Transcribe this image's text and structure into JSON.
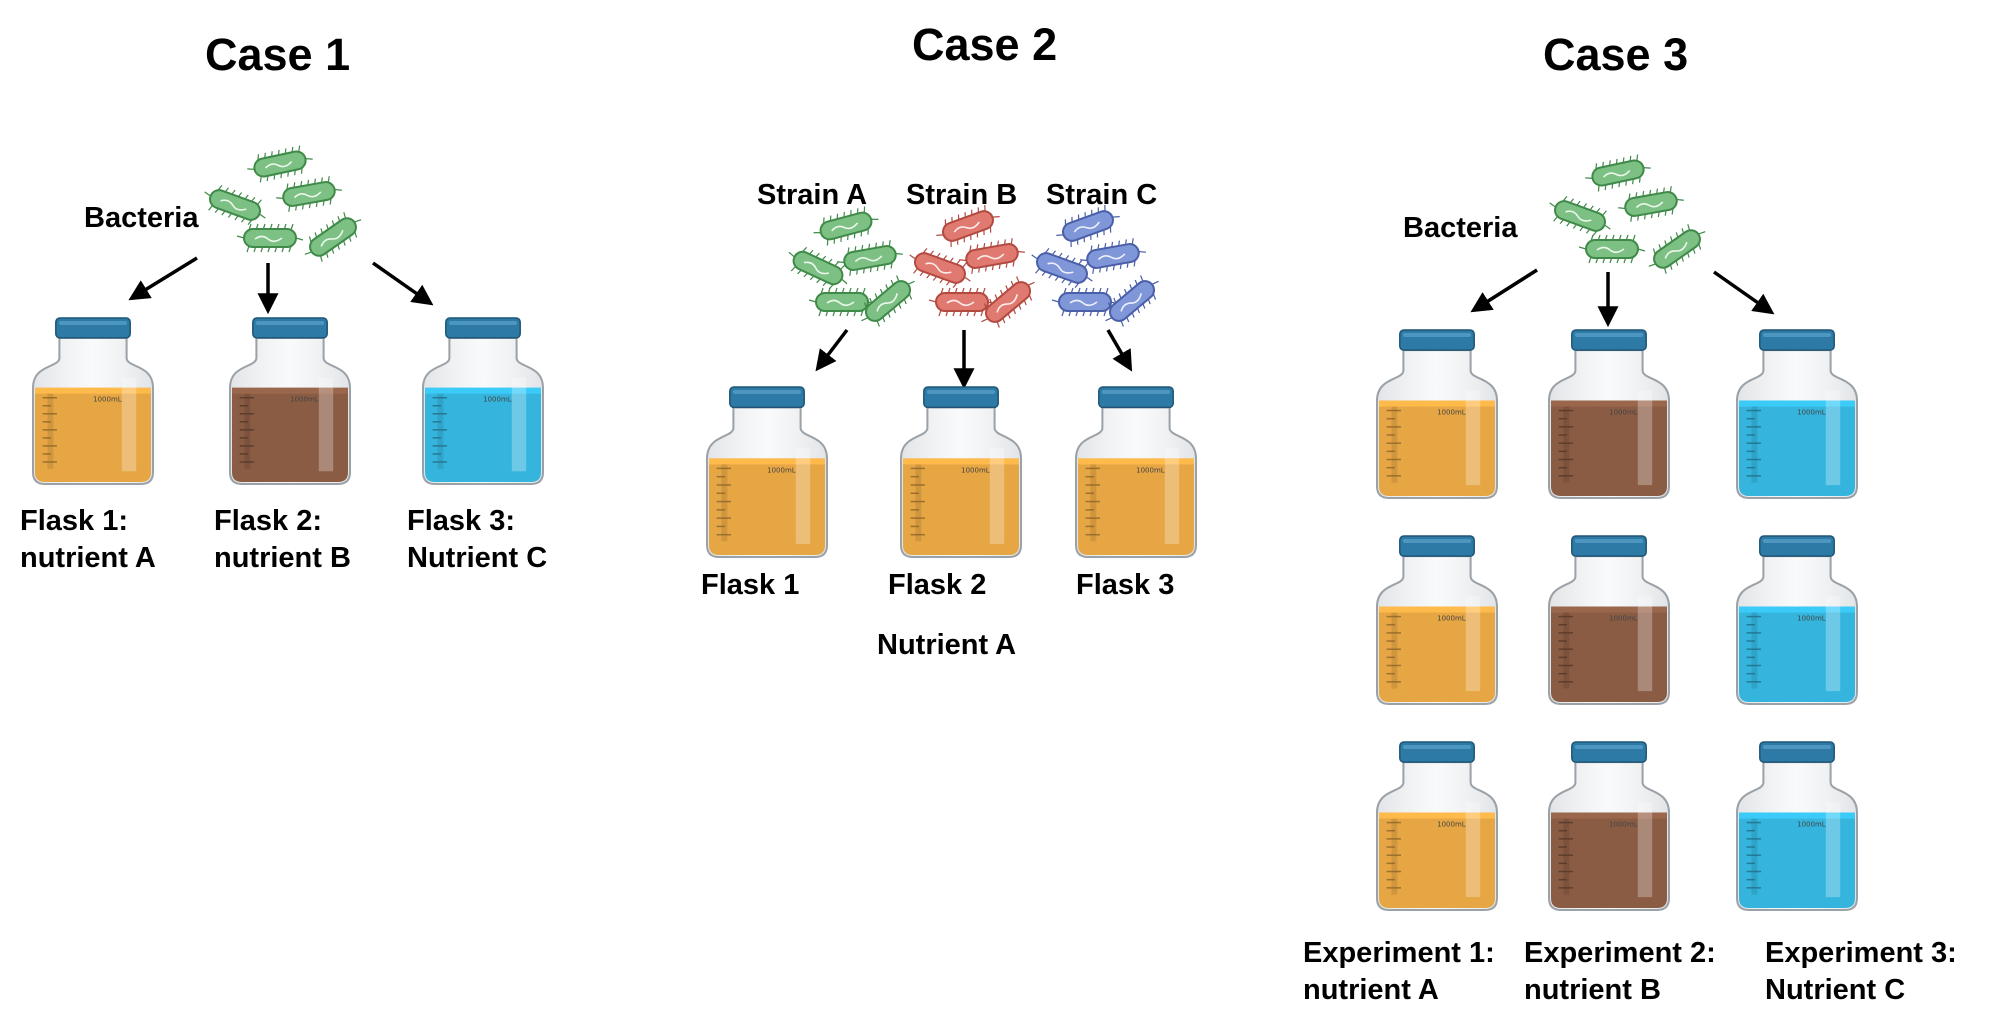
{
  "colors": {
    "nutrient_amber": "#e7a644",
    "nutrient_brown": "#8a5c44",
    "nutrient_blue": "#35b5dd",
    "cap": "#2d7aa6",
    "strain_green": "#7cc083",
    "strain_red": "#e07a70",
    "strain_blue": "#7f96d8"
  },
  "case1": {
    "title": "Case 1",
    "source_label": "Bacteria",
    "flasks": [
      {
        "line1": "Flask 1:",
        "line2": "nutrient A",
        "liquid": "amber"
      },
      {
        "line1": "Flask 2:",
        "line2": "nutrient B",
        "liquid": "brown"
      },
      {
        "line1": "Flask 3:",
        "line2": "Nutrient C",
        "liquid": "blue"
      }
    ]
  },
  "case2": {
    "title": "Case 2",
    "strains": [
      {
        "label": "Strain A",
        "color": "green"
      },
      {
        "label": "Strain B",
        "color": "red"
      },
      {
        "label": "Strain C",
        "color": "blue"
      }
    ],
    "flasks": [
      {
        "label": "Flask 1",
        "liquid": "amber"
      },
      {
        "label": "Flask 2",
        "liquid": "amber"
      },
      {
        "label": "Flask 3",
        "liquid": "amber"
      }
    ],
    "nutrient_label": "Nutrient A"
  },
  "case3": {
    "title": "Case 3",
    "source_label": "Bacteria",
    "columns": [
      {
        "line1": "Experiment 1:",
        "line2": "nutrient A",
        "liquid": "amber"
      },
      {
        "line1": "Experiment 2:",
        "line2": "nutrient B",
        "liquid": "brown"
      },
      {
        "line1": "Experiment 3:",
        "line2": "Nutrient C",
        "liquid": "blue"
      }
    ],
    "replicates": 3
  },
  "icons": {
    "bacterium": "rod-bacterium-icon",
    "flask": "media-bottle-icon",
    "arrow": "down-arrow-icon"
  },
  "bottle_volume_label": "1000mL"
}
